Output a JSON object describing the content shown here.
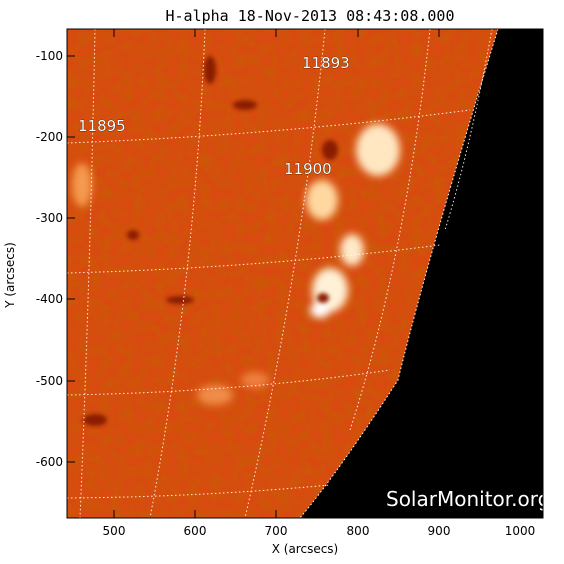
{
  "title": "H-alpha 18-Nov-2013 08:43:08.000",
  "xlabel": "X (arcsecs)",
  "ylabel": "Y (arcsecs)",
  "x_ticks": [
    "500",
    "600",
    "700",
    "800",
    "900",
    "1000"
  ],
  "y_ticks": [
    "-100",
    "-200",
    "-300",
    "-400",
    "-500",
    "-600"
  ],
  "active_regions": [
    "11893",
    "11895",
    "11900"
  ],
  "watermark": "SolarMonitor.org",
  "colors": {
    "solar_disk": "#d84a10",
    "plage": "#fff1d6",
    "space": "#000000",
    "grid": "#ffffff"
  }
}
